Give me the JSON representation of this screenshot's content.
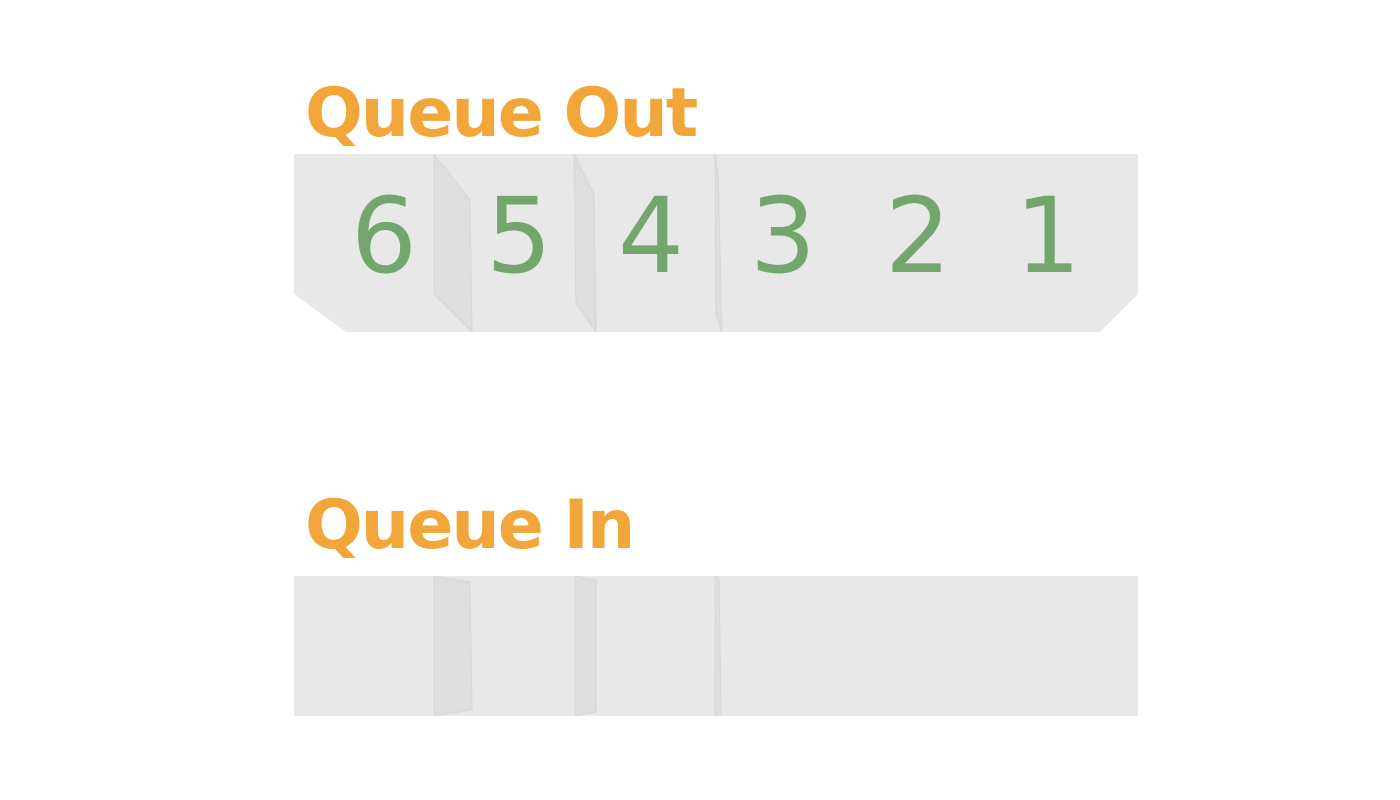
{
  "colors": {
    "title": "#f2a63a",
    "digit": "#73a66d",
    "bar": "#e8e8e8",
    "fold": "#dedede",
    "fold_edge": "#d6d6d6"
  },
  "queue_out": {
    "title": "Queue Out",
    "items": [
      "6",
      "5",
      "4",
      "3",
      "2",
      "1"
    ]
  },
  "queue_in": {
    "title": "Queue In",
    "items": []
  }
}
